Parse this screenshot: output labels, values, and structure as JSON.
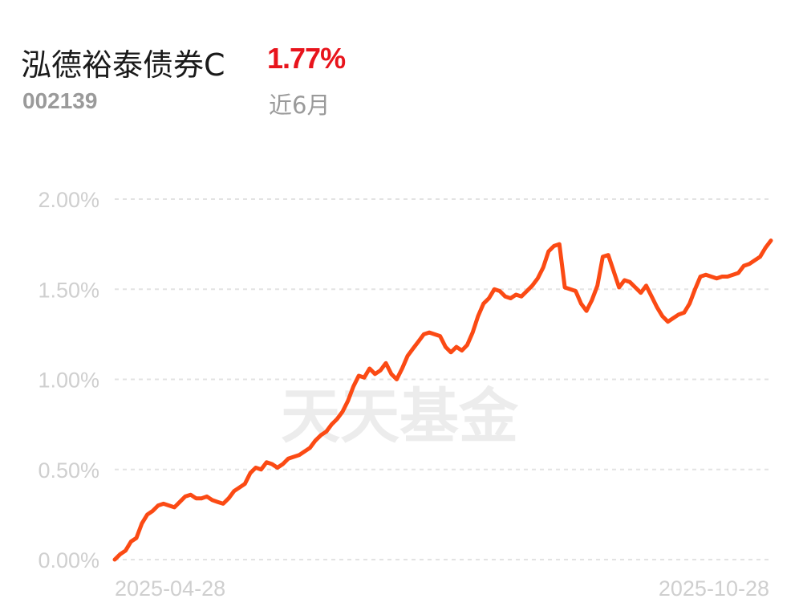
{
  "header": {
    "fund_name": "泓德裕泰债券C",
    "return_value": "1.77%",
    "fund_code": "002139",
    "period_label": "近6月"
  },
  "watermark": "天天基金",
  "colors": {
    "line": "#fb4a14",
    "return_text": "#e8141c",
    "grid": "#e3e3e3",
    "tick_text": "#cfcfcf"
  },
  "chart_data": {
    "type": "line",
    "title": "",
    "xlabel": "",
    "ylabel": "",
    "ylim": [
      0,
      2.0
    ],
    "yticks": [
      "0.00%",
      "0.50%",
      "1.00%",
      "1.50%",
      "2.00%"
    ],
    "xticks": [
      "2025-04-28",
      "2025-10-28"
    ],
    "grid": true,
    "series": [
      {
        "values": [
          0.0,
          0.03,
          0.05,
          0.1,
          0.12,
          0.2,
          0.25,
          0.27,
          0.3,
          0.31,
          0.3,
          0.29,
          0.32,
          0.35,
          0.36,
          0.34,
          0.34,
          0.35,
          0.33,
          0.32,
          0.31,
          0.34,
          0.38,
          0.4,
          0.42,
          0.48,
          0.51,
          0.5,
          0.54,
          0.53,
          0.51,
          0.53,
          0.56,
          0.57,
          0.58,
          0.6,
          0.62,
          0.66,
          0.69,
          0.71,
          0.75,
          0.78,
          0.82,
          0.88,
          0.96,
          1.02,
          1.01,
          1.06,
          1.03,
          1.05,
          1.09,
          1.03,
          1.0,
          1.06,
          1.13,
          1.17,
          1.21,
          1.25,
          1.26,
          1.25,
          1.24,
          1.18,
          1.15,
          1.18,
          1.16,
          1.19,
          1.26,
          1.35,
          1.42,
          1.45,
          1.5,
          1.49,
          1.46,
          1.45,
          1.47,
          1.46,
          1.49,
          1.52,
          1.56,
          1.62,
          1.71,
          1.74,
          1.75,
          1.51,
          1.5,
          1.49,
          1.42,
          1.38,
          1.44,
          1.52,
          1.68,
          1.69,
          1.6,
          1.51,
          1.55,
          1.54,
          1.51,
          1.48,
          1.52,
          1.46,
          1.4,
          1.35,
          1.32,
          1.34,
          1.36,
          1.37,
          1.42,
          1.5,
          1.57,
          1.58,
          1.57,
          1.56,
          1.57,
          1.57,
          1.58,
          1.59,
          1.63,
          1.64,
          1.66,
          1.68,
          1.73,
          1.77
        ]
      }
    ]
  }
}
